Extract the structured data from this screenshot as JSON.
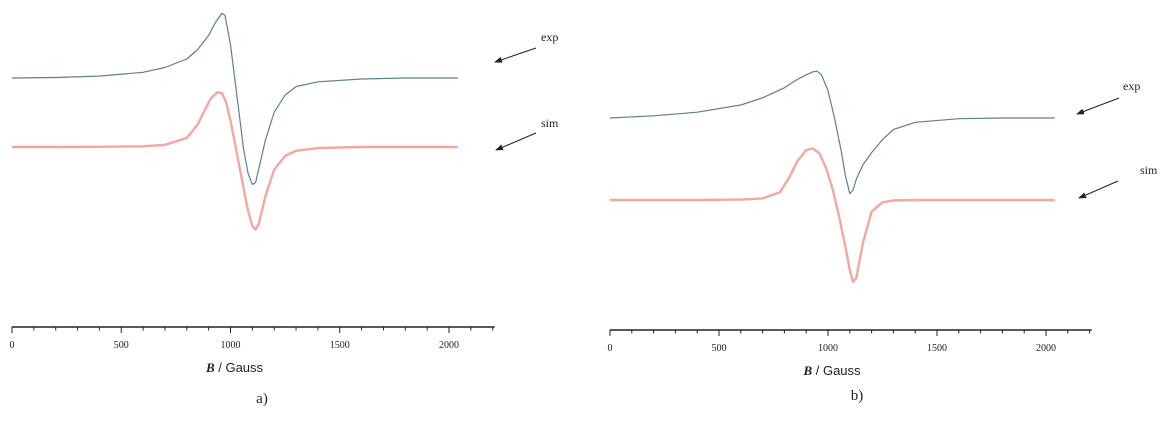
{
  "chart_data": [
    {
      "type": "line",
      "caption": "a)",
      "xlabel_symbol": "B",
      "xlabel_unit": " / Gauss",
      "xlim": [
        0,
        2200
      ],
      "xticks": [
        0,
        500,
        1000,
        1500,
        2000
      ],
      "xtick_labels": [
        "0",
        "500",
        "1000",
        "1500",
        "2000"
      ],
      "grid": false,
      "series": [
        {
          "label": "exp",
          "color": "#5f7f8c",
          "x": [
            0,
            200,
            400,
            600,
            700,
            800,
            850,
            900,
            930,
            960,
            975,
            1000,
            1030,
            1060,
            1080,
            1100,
            1115,
            1130,
            1160,
            1200,
            1250,
            1300,
            1400,
            1600,
            1800,
            2040
          ],
          "y": [
            0.0,
            0.005,
            0.02,
            0.06,
            0.11,
            0.2,
            0.3,
            0.45,
            0.58,
            0.68,
            0.66,
            0.35,
            -0.2,
            -0.75,
            -1.0,
            -1.12,
            -1.1,
            -0.95,
            -0.65,
            -0.36,
            -0.18,
            -0.09,
            -0.04,
            -0.01,
            0.0,
            0.0
          ]
        },
        {
          "label": "sim",
          "color": "#f4a79f",
          "x": [
            0,
            200,
            400,
            600,
            700,
            800,
            850,
            880,
            910,
            940,
            960,
            980,
            1000,
            1030,
            1060,
            1080,
            1100,
            1115,
            1130,
            1160,
            1200,
            1250,
            1300,
            1400,
            1600,
            1800,
            2040
          ],
          "y": [
            0.0,
            0.0,
            0.002,
            0.01,
            0.03,
            0.12,
            0.3,
            0.48,
            0.65,
            0.73,
            0.72,
            0.6,
            0.35,
            -0.1,
            -0.55,
            -0.85,
            -1.05,
            -1.1,
            -1.02,
            -0.65,
            -0.3,
            -0.12,
            -0.05,
            -0.015,
            0.0,
            0.0,
            0.0
          ]
        }
      ]
    },
    {
      "type": "line",
      "caption": "b)",
      "xlabel_symbol": "B",
      "xlabel_unit": " / Gauss",
      "xlim": [
        0,
        2200
      ],
      "xticks": [
        0,
        500,
        1000,
        1500,
        2000
      ],
      "xtick_labels": [
        "0",
        "500",
        "1000",
        "1500",
        "2000"
      ],
      "grid": false,
      "series": [
        {
          "label": "exp",
          "color": "#5f7f8c",
          "x": [
            0,
            200,
            400,
            600,
            700,
            800,
            850,
            900,
            930,
            950,
            970,
            1000,
            1030,
            1060,
            1080,
            1100,
            1115,
            1130,
            1160,
            1200,
            1250,
            1300,
            1400,
            1600,
            1800,
            2040
          ],
          "y": [
            0.0,
            0.03,
            0.08,
            0.18,
            0.28,
            0.42,
            0.52,
            0.6,
            0.64,
            0.65,
            0.6,
            0.38,
            0.0,
            -0.45,
            -0.8,
            -1.05,
            -1.0,
            -0.85,
            -0.65,
            -0.48,
            -0.3,
            -0.16,
            -0.06,
            -0.01,
            0.0,
            0.0
          ]
        },
        {
          "label": "sim",
          "color": "#f4a79f",
          "x": [
            0,
            200,
            400,
            600,
            700,
            780,
            820,
            860,
            900,
            930,
            960,
            990,
            1020,
            1050,
            1080,
            1100,
            1115,
            1130,
            1160,
            1200,
            1250,
            1300,
            1400,
            1600,
            1800,
            2040
          ],
          "y": [
            0.0,
            0.0,
            0.0,
            0.005,
            0.02,
            0.1,
            0.28,
            0.5,
            0.64,
            0.66,
            0.6,
            0.42,
            0.15,
            -0.2,
            -0.6,
            -0.9,
            -1.05,
            -1.0,
            -0.55,
            -0.15,
            -0.03,
            -0.005,
            0.0,
            0.0,
            0.0,
            0.0
          ]
        }
      ]
    }
  ]
}
